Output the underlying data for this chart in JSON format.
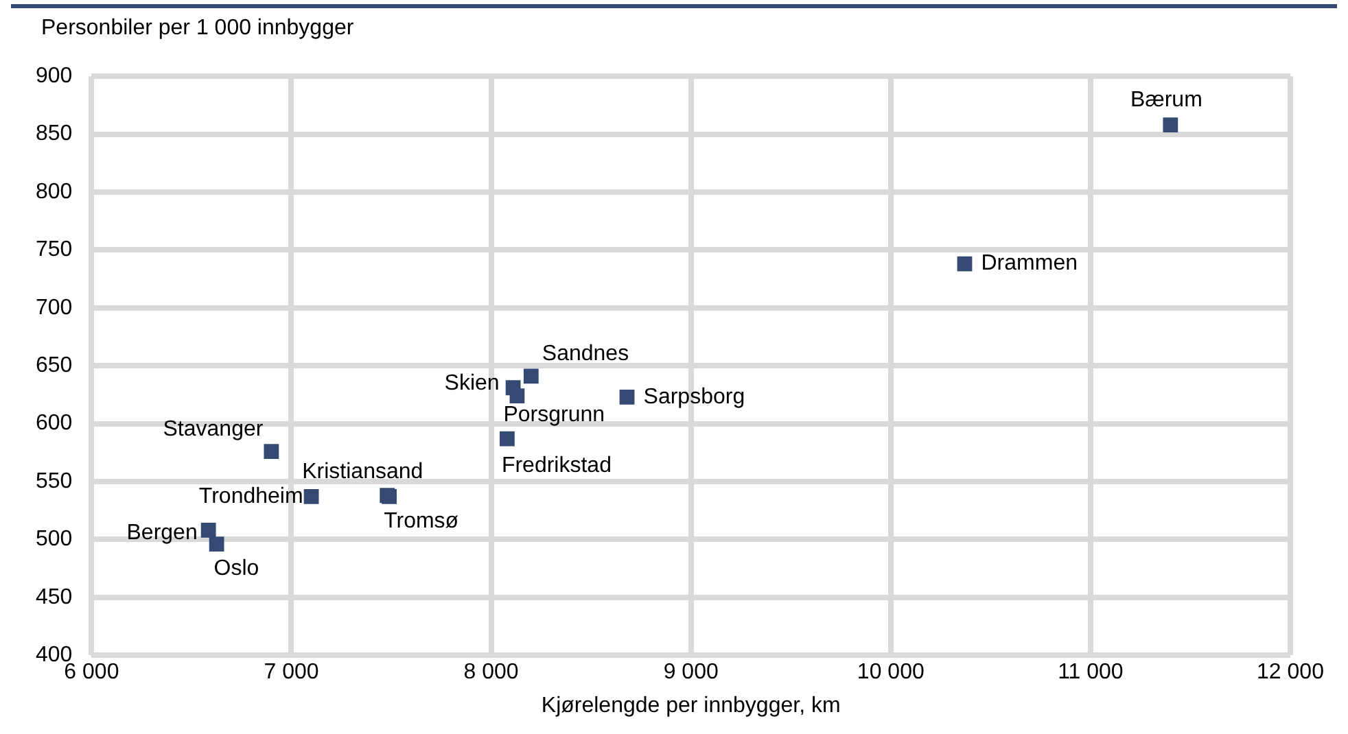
{
  "chart_data": {
    "type": "scatter",
    "xlabel": "Kjørelengde per innbygger, km",
    "ylabel": "Personbiler per 1 000 innbygger",
    "xlim": [
      6000,
      12000
    ],
    "xticks": [
      {
        "value": 6000,
        "label": "6 000"
      },
      {
        "value": 7000,
        "label": "7 000"
      },
      {
        "value": 8000,
        "label": "8 000"
      },
      {
        "value": 9000,
        "label": "9 000"
      },
      {
        "value": 10000,
        "label": "10 000"
      },
      {
        "value": 11000,
        "label": "11 000"
      },
      {
        "value": 12000,
        "label": "12 000"
      }
    ],
    "ylim": [
      400,
      900
    ],
    "yticks": [
      400,
      450,
      500,
      550,
      600,
      650,
      700,
      750,
      800,
      850,
      900
    ],
    "grid": true,
    "legend": false,
    "marker": "square",
    "series": [
      {
        "name": "Bærum",
        "color": "#344a72",
        "x": [
          11400
        ],
        "values": [
          858
        ]
      },
      {
        "name": "Drammen",
        "color": "#344a72",
        "x": [
          10370
        ],
        "values": [
          738
        ]
      },
      {
        "name": "Sarpsborg",
        "color": "#344a72",
        "x": [
          8680
        ],
        "values": [
          623
        ]
      },
      {
        "name": "Sandnes",
        "color": "#344a72",
        "x": [
          8200
        ],
        "values": [
          641
        ]
      },
      {
        "name": "Skien",
        "color": "#344a72",
        "x": [
          8110
        ],
        "values": [
          631
        ]
      },
      {
        "name": "Porsgrunn",
        "color": "#344a72",
        "x": [
          8130
        ],
        "values": [
          624
        ]
      },
      {
        "name": "Fredrikstad",
        "color": "#344a72",
        "x": [
          8080
        ],
        "values": [
          587
        ]
      },
      {
        "name": "Stavanger",
        "color": "#344a72",
        "x": [
          6900
        ],
        "values": [
          576
        ]
      },
      {
        "name": "Kristiansand",
        "color": "#344a72",
        "x": [
          7480
        ],
        "values": [
          538
        ]
      },
      {
        "name": "Trondheim",
        "color": "#344a72",
        "x": [
          7100
        ],
        "values": [
          537
        ]
      },
      {
        "name": "Tromsø",
        "color": "#344a72",
        "x": [
          7490
        ],
        "values": [
          537
        ]
      },
      {
        "name": "Bergen",
        "color": "#344a72",
        "x": [
          6585
        ],
        "values": [
          508
        ]
      },
      {
        "name": "Oslo",
        "color": "#344a72",
        "x": [
          6626
        ],
        "values": [
          496
        ]
      }
    ]
  }
}
